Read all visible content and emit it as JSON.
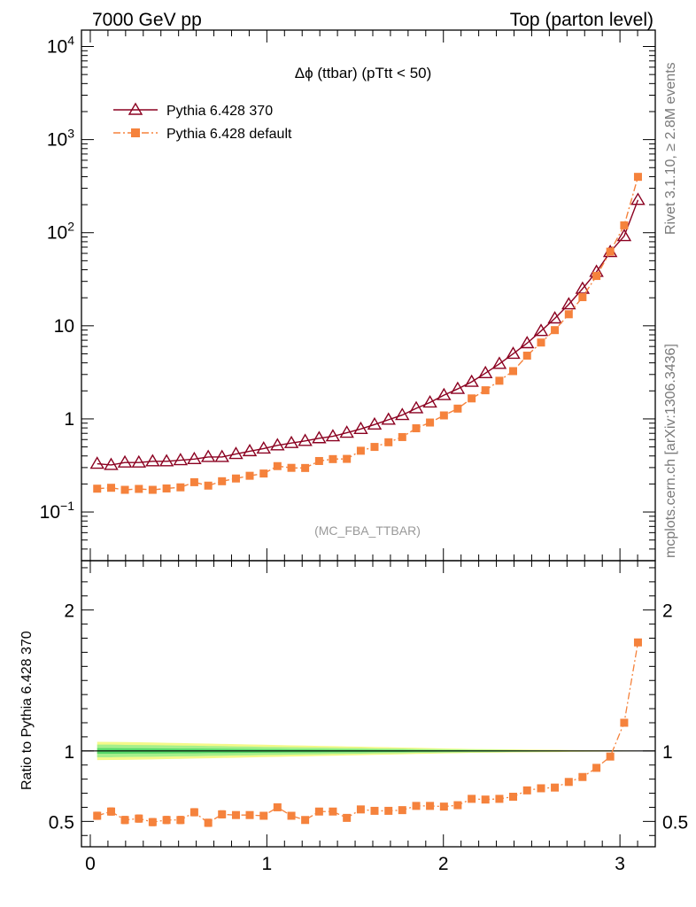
{
  "header": {
    "left": "7000 GeV pp",
    "right": "Top (parton level)"
  },
  "side_labels": {
    "rivet": "Rivet 3.1.10, ≥ 2.8M events",
    "mcplots": "mcplots.cern.ch [arXiv:1306.3436]"
  },
  "chart_data": [
    {
      "type": "line",
      "title": "Δϕ (ttbar) (pTtt < 50)",
      "analysis_label": "(MC_FBA_TTBAR)",
      "y_scale": "log",
      "ylim": [
        0.03,
        15000
      ],
      "xlim": [
        -0.05,
        3.2
      ],
      "y_ticks": [
        {
          "value": 0.1,
          "label": "10",
          "exp": "−1"
        },
        {
          "value": 1,
          "label": "1",
          "exp": ""
        },
        {
          "value": 10,
          "label": "10",
          "exp": ""
        },
        {
          "value": 100,
          "label": "10",
          "exp": "2"
        },
        {
          "value": 1000,
          "label": "10",
          "exp": "3"
        },
        {
          "value": 10000,
          "label": "10",
          "exp": "4"
        }
      ],
      "legend": {
        "position": "top-left"
      },
      "x": [
        0.039,
        0.118,
        0.196,
        0.275,
        0.353,
        0.432,
        0.511,
        0.589,
        0.668,
        0.746,
        0.825,
        0.903,
        0.982,
        1.06,
        1.139,
        1.217,
        1.296,
        1.374,
        1.453,
        1.532,
        1.61,
        1.689,
        1.767,
        1.846,
        1.924,
        2.003,
        2.081,
        2.16,
        2.238,
        2.317,
        2.395,
        2.474,
        2.553,
        2.631,
        2.71,
        2.788,
        2.867,
        2.945,
        3.024,
        3.102
      ],
      "series": [
        {
          "name": "Pythia 6.428 370",
          "color": "#8b0020",
          "marker": "open-triangle",
          "values": [
            0.33,
            0.32,
            0.34,
            0.34,
            0.35,
            0.35,
            0.36,
            0.37,
            0.39,
            0.39,
            0.42,
            0.45,
            0.48,
            0.52,
            0.55,
            0.58,
            0.62,
            0.65,
            0.71,
            0.78,
            0.87,
            0.98,
            1.1,
            1.3,
            1.5,
            1.8,
            2.1,
            2.5,
            3.1,
            3.9,
            5.0,
            6.5,
            8.8,
            12,
            17,
            25,
            38,
            62,
            92,
            225
          ]
        },
        {
          "name": "Pythia 6.428 default",
          "color": "#f5823c",
          "marker": "filled-square",
          "values": [
            0.178,
            0.182,
            0.173,
            0.177,
            0.173,
            0.179,
            0.184,
            0.209,
            0.192,
            0.214,
            0.229,
            0.245,
            0.259,
            0.311,
            0.298,
            0.297,
            0.353,
            0.37,
            0.372,
            0.455,
            0.5,
            0.561,
            0.638,
            0.793,
            0.914,
            1.09,
            1.29,
            1.66,
            2.03,
            2.57,
            3.26,
            4.78,
            6.61,
            8.99,
            13.3,
            20.3,
            34.3,
            62.6,
            120,
            398
          ]
        }
      ]
    },
    {
      "type": "line",
      "ylabel": "Ratio to Pythia 6.428 370",
      "ylim": [
        0.32,
        2.35
      ],
      "xlim": [
        -0.05,
        3.2
      ],
      "y_ticks": [
        0.5,
        1,
        2
      ],
      "x_ticks": [
        0,
        1,
        2,
        3
      ],
      "reference_line": 1,
      "band_green_halfwidth": [
        0.045,
        0.045,
        0.043,
        0.042,
        0.041,
        0.04,
        0.038,
        0.037,
        0.035,
        0.034,
        0.032,
        0.031,
        0.029,
        0.028,
        0.026,
        0.025,
        0.024,
        0.022,
        0.021,
        0.02,
        0.018,
        0.017,
        0.016,
        0.014,
        0.013,
        0.012,
        0.011,
        0.01,
        0.009,
        0.008,
        0.007,
        0.006,
        0.005,
        0.004,
        0.003,
        0.003,
        0.002,
        0.002,
        0.001,
        0.001
      ],
      "band_yellow_halfwidth": [
        0.065,
        0.064,
        0.063,
        0.062,
        0.06,
        0.058,
        0.056,
        0.054,
        0.052,
        0.05,
        0.048,
        0.046,
        0.044,
        0.042,
        0.04,
        0.038,
        0.036,
        0.034,
        0.032,
        0.03,
        0.028,
        0.026,
        0.024,
        0.022,
        0.02,
        0.018,
        0.016,
        0.014,
        0.013,
        0.012,
        0.011,
        0.01,
        0.009,
        0.008,
        0.007,
        0.006,
        0.005,
        0.004,
        0.003,
        0.002
      ],
      "series": [
        {
          "name": "Pythia 6.428 default",
          "color": "#f5823c",
          "marker": "filled-square",
          "values": [
            0.54,
            0.57,
            0.51,
            0.52,
            0.495,
            0.51,
            0.51,
            0.565,
            0.49,
            0.55,
            0.545,
            0.545,
            0.54,
            0.6,
            0.54,
            0.51,
            0.57,
            0.57,
            0.525,
            0.585,
            0.575,
            0.575,
            0.58,
            0.61,
            0.61,
            0.605,
            0.615,
            0.66,
            0.655,
            0.66,
            0.675,
            0.72,
            0.735,
            0.74,
            0.78,
            0.815,
            0.88,
            0.96,
            1.2,
            1.77
          ],
          "errors": [
            0.025,
            0.025,
            0.025,
            0.025,
            0.025,
            0.025,
            0.025,
            0.025,
            0.025,
            0.025,
            0.02,
            0.02,
            0.02,
            0.02,
            0.02,
            0.02,
            0.02,
            0.02,
            0.02,
            0.015,
            0.015,
            0.015,
            0.012,
            0.012,
            0.012,
            0.012,
            0.01,
            0.01,
            0.01,
            0.01,
            0.01,
            0.01,
            0.01,
            0.01,
            0.01,
            0.01,
            0.01,
            0.01,
            0.012,
            0.015
          ]
        }
      ]
    }
  ]
}
